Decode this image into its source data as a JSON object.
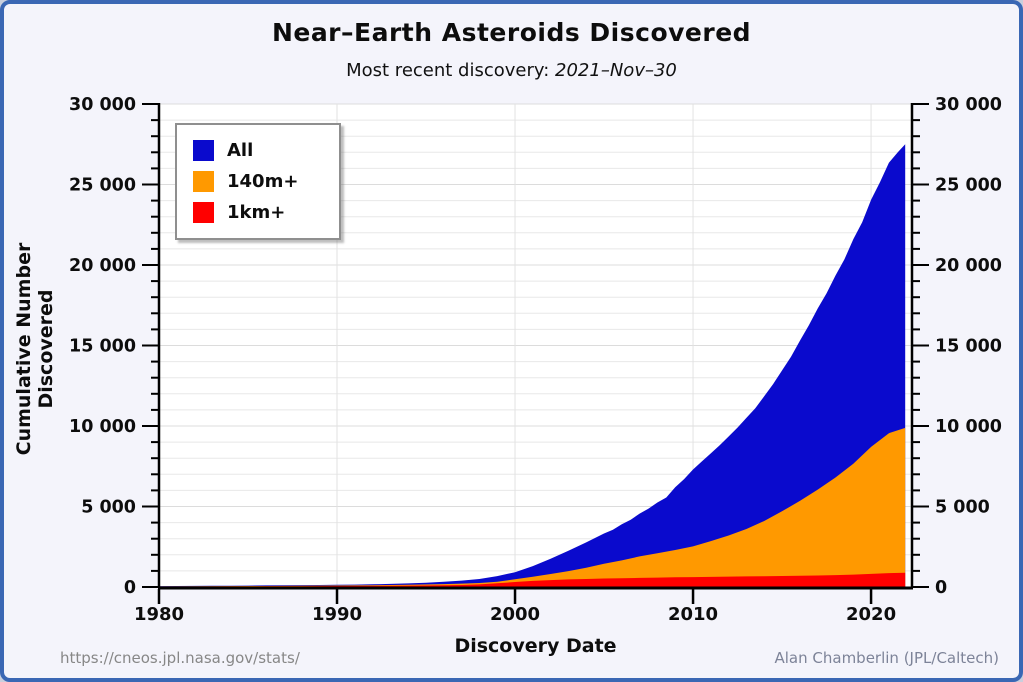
{
  "header": {
    "title": "Near–Earth Asteroids Discovered",
    "subtitle_label": "Most recent discovery: ",
    "subtitle_date": "2021–Nov–30"
  },
  "footer": {
    "url": "https://cneos.jpl.nasa.gov/stats/",
    "credit": "Alan Chamberlin (JPL/Caltech)"
  },
  "legend": {
    "items": [
      {
        "label": "All",
        "color": "#0a0acd"
      },
      {
        "label": "140m+",
        "color": "#ff9900"
      },
      {
        "label": "1km+",
        "color": "#ff0000"
      }
    ]
  },
  "chart_data": {
    "type": "area",
    "title": "Near–Earth Asteroids Discovered",
    "subtitle": "Most recent discovery: 2021–Nov–30",
    "xlabel": "Discovery Date",
    "ylabel": "Cumulative Number Discovered",
    "legend_position": "top-left",
    "grid": {
      "horizontal_step": 1000,
      "vertical_ticks": [
        1990,
        2000,
        2010,
        2020
      ]
    },
    "x_axis": {
      "min": 1980,
      "max": 2022.3,
      "ticks": [
        1980,
        1990,
        2000,
        2010,
        2020
      ],
      "tick_labels": [
        "1980",
        "1990",
        "2000",
        "2010",
        "2020"
      ]
    },
    "y_axis": {
      "min": 0,
      "max": 30000,
      "major_step": 5000,
      "minor_step": 1000,
      "tick_labels": [
        "0",
        "5 000",
        "10 000",
        "15 000",
        "20 000",
        "25 000",
        "30 000"
      ],
      "sides": [
        "left",
        "right"
      ]
    },
    "series": [
      {
        "name": "All",
        "color": "#0a0acd",
        "points": [
          [
            1980,
            57
          ],
          [
            1981,
            62
          ],
          [
            1982,
            67
          ],
          [
            1983,
            73
          ],
          [
            1984,
            80
          ],
          [
            1985,
            88
          ],
          [
            1986,
            97
          ],
          [
            1987,
            107
          ],
          [
            1988,
            117
          ],
          [
            1989,
            127
          ],
          [
            1990,
            136
          ],
          [
            1991,
            150
          ],
          [
            1992,
            168
          ],
          [
            1993,
            192
          ],
          [
            1994,
            225
          ],
          [
            1995,
            268
          ],
          [
            1996,
            320
          ],
          [
            1997,
            395
          ],
          [
            1998,
            500
          ],
          [
            1999,
            680
          ],
          [
            2000,
            920
          ],
          [
            2001,
            1300
          ],
          [
            2002,
            1750
          ],
          [
            2003,
            2250
          ],
          [
            2004,
            2770
          ],
          [
            2005,
            3320
          ],
          [
            2005.5,
            3560
          ],
          [
            2006,
            3900
          ],
          [
            2006.5,
            4180
          ],
          [
            2007,
            4560
          ],
          [
            2007.5,
            4870
          ],
          [
            2008,
            5250
          ],
          [
            2008.5,
            5560
          ],
          [
            2009,
            6200
          ],
          [
            2009.5,
            6700
          ],
          [
            2010,
            7300
          ],
          [
            2010.5,
            7800
          ],
          [
            2011,
            8300
          ],
          [
            2011.5,
            8800
          ],
          [
            2012,
            9350
          ],
          [
            2012.5,
            9900
          ],
          [
            2013,
            10500
          ],
          [
            2013.5,
            11100
          ],
          [
            2014,
            11850
          ],
          [
            2014.5,
            12600
          ],
          [
            2015,
            13450
          ],
          [
            2015.5,
            14300
          ],
          [
            2016,
            15300
          ],
          [
            2016.5,
            16250
          ],
          [
            2017,
            17300
          ],
          [
            2017.5,
            18250
          ],
          [
            2018,
            19350
          ],
          [
            2018.5,
            20350
          ],
          [
            2019,
            21600
          ],
          [
            2019.5,
            22650
          ],
          [
            2020,
            24050
          ],
          [
            2020.5,
            25150
          ],
          [
            2021,
            26350
          ],
          [
            2021.5,
            27000
          ],
          [
            2021.92,
            27500
          ]
        ]
      },
      {
        "name": "140m+",
        "color": "#ff9900",
        "points": [
          [
            1980,
            40
          ],
          [
            1982,
            46
          ],
          [
            1984,
            54
          ],
          [
            1986,
            64
          ],
          [
            1988,
            76
          ],
          [
            1990,
            92
          ],
          [
            1992,
            112
          ],
          [
            1994,
            140
          ],
          [
            1996,
            180
          ],
          [
            1997,
            210
          ],
          [
            1998,
            250
          ],
          [
            1999,
            330
          ],
          [
            2000,
            480
          ],
          [
            2001,
            640
          ],
          [
            2002,
            810
          ],
          [
            2003,
            990
          ],
          [
            2004,
            1200
          ],
          [
            2005,
            1440
          ],
          [
            2006,
            1650
          ],
          [
            2007,
            1900
          ],
          [
            2008,
            2100
          ],
          [
            2009,
            2300
          ],
          [
            2010,
            2520
          ],
          [
            2011,
            2850
          ],
          [
            2012,
            3200
          ],
          [
            2013,
            3600
          ],
          [
            2014,
            4100
          ],
          [
            2015,
            4700
          ],
          [
            2016,
            5350
          ],
          [
            2017,
            6050
          ],
          [
            2018,
            6800
          ],
          [
            2019,
            7650
          ],
          [
            2020,
            8700
          ],
          [
            2021,
            9550
          ],
          [
            2021.92,
            9880
          ]
        ]
      },
      {
        "name": "1km+",
        "color": "#ff0000",
        "points": [
          [
            1980,
            30
          ],
          [
            1982,
            33
          ],
          [
            1984,
            38
          ],
          [
            1986,
            44
          ],
          [
            1988,
            52
          ],
          [
            1990,
            60
          ],
          [
            1992,
            70
          ],
          [
            1994,
            85
          ],
          [
            1996,
            105
          ],
          [
            1997,
            125
          ],
          [
            1998,
            160
          ],
          [
            1999,
            230
          ],
          [
            2000,
            310
          ],
          [
            2001,
            380
          ],
          [
            2002,
            430
          ],
          [
            2003,
            470
          ],
          [
            2004,
            500
          ],
          [
            2005,
            525
          ],
          [
            2006,
            548
          ],
          [
            2007,
            568
          ],
          [
            2008,
            585
          ],
          [
            2009,
            600
          ],
          [
            2010,
            615
          ],
          [
            2011,
            630
          ],
          [
            2012,
            645
          ],
          [
            2013,
            658
          ],
          [
            2014,
            670
          ],
          [
            2015,
            683
          ],
          [
            2016,
            698
          ],
          [
            2017,
            715
          ],
          [
            2018,
            738
          ],
          [
            2019,
            768
          ],
          [
            2020,
            812
          ],
          [
            2021,
            865
          ],
          [
            2021.92,
            890
          ]
        ]
      }
    ]
  }
}
